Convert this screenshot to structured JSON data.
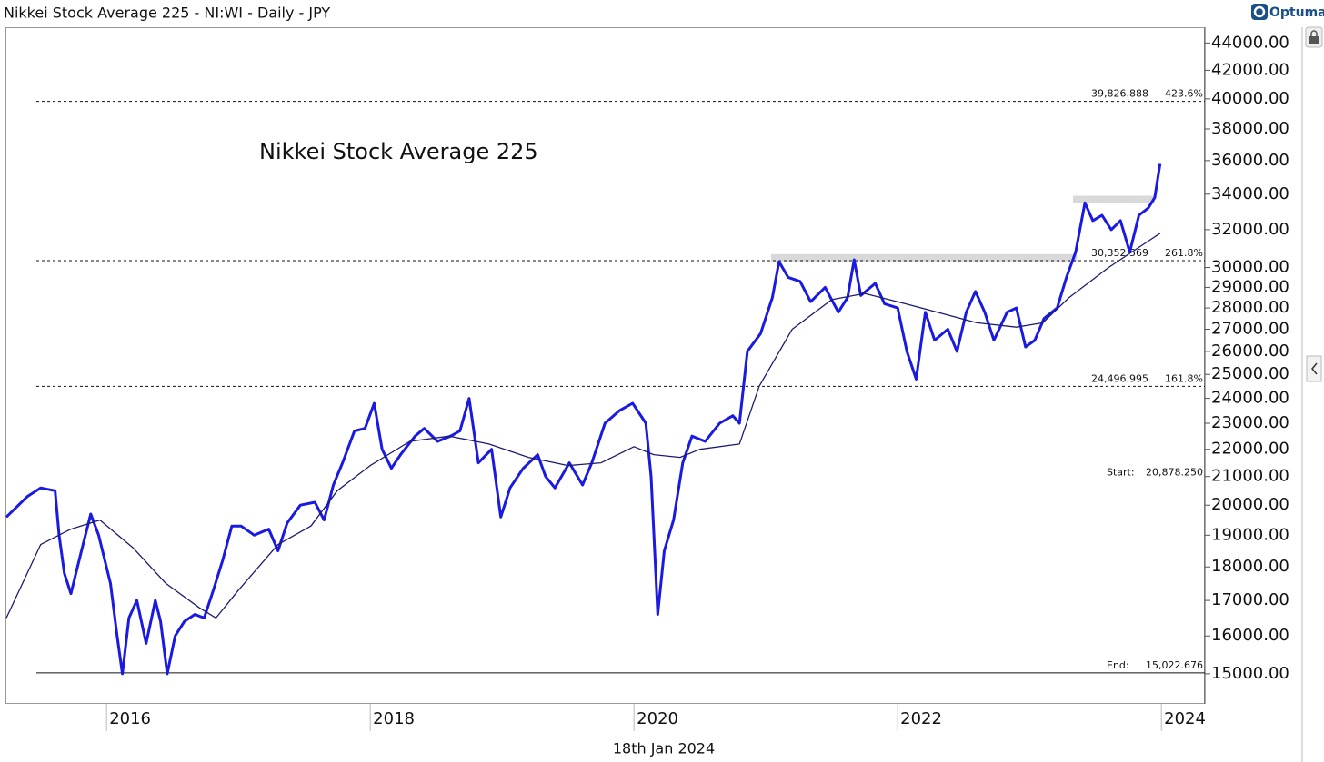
{
  "chart_data": {
    "type": "line",
    "title": "Nikkei Stock Average 225 - NI:WI - Daily - JPY",
    "brand": "Optuma",
    "annotation": "Nikkei Stock Average 225",
    "date_label": "18th Jan 2024",
    "log_scale": true,
    "grid": false,
    "xlim": [
      2015.24,
      2024.33
    ],
    "xticks": [
      2016,
      2018,
      2020,
      2022,
      2024
    ],
    "ylim": [
      14250,
      45200
    ],
    "yticks": [
      {
        "value": 15000,
        "label": "15000.00"
      },
      {
        "value": 16000,
        "label": "16000.00"
      },
      {
        "value": 17000,
        "label": "17000.00"
      },
      {
        "value": 18000,
        "label": "18000.00"
      },
      {
        "value": 19000,
        "label": "19000.00"
      },
      {
        "value": 20000,
        "label": "20000.00"
      },
      {
        "value": 21000,
        "label": "21000.00"
      },
      {
        "value": 22000,
        "label": "22000.00"
      },
      {
        "value": 23000,
        "label": "23000.00"
      },
      {
        "value": 24000,
        "label": "24000.00"
      },
      {
        "value": 25000,
        "label": "25000.00"
      },
      {
        "value": 26000,
        "label": "26000.00"
      },
      {
        "value": 27000,
        "label": "27000.00"
      },
      {
        "value": 28000,
        "label": "28000.00"
      },
      {
        "value": 29000,
        "label": "29000.00"
      },
      {
        "value": 30000,
        "label": "30000.00"
      },
      {
        "value": 32000,
        "label": "32000.00"
      },
      {
        "value": 34000,
        "label": "34000.00"
      },
      {
        "value": 36000,
        "label": "36000.00"
      },
      {
        "value": 38000,
        "label": "38000.00"
      },
      {
        "value": 40000,
        "label": "40000.00"
      },
      {
        "value": 42000,
        "label": "42000.00"
      },
      {
        "value": 44000,
        "label": "44000.00"
      }
    ],
    "series": [
      {
        "color": "#1a1ae0",
        "width": 3,
        "x": [
          2015.24,
          2015.4,
          2015.5,
          2015.61,
          2015.64,
          2015.68,
          2015.73,
          2015.81,
          2015.88,
          2015.94,
          2016.03,
          2016.08,
          2016.12,
          2016.17,
          2016.23,
          2016.3,
          2016.37,
          2016.41,
          2016.46,
          2016.52,
          2016.59,
          2016.67,
          2016.74,
          2016.81,
          2016.88,
          2016.95,
          2017.02,
          2017.12,
          2017.23,
          2017.3,
          2017.37,
          2017.47,
          2017.58,
          2017.65,
          2017.72,
          2017.79,
          2017.88,
          2017.96,
          2018.03,
          2018.09,
          2018.16,
          2018.23,
          2018.34,
          2018.41,
          2018.51,
          2018.61,
          2018.68,
          2018.75,
          2018.82,
          2018.92,
          2018.99,
          2019.06,
          2019.16,
          2019.27,
          2019.33,
          2019.4,
          2019.51,
          2019.61,
          2019.68,
          2019.78,
          2019.89,
          2019.99,
          2020.09,
          2020.13,
          2020.18,
          2020.23,
          2020.3,
          2020.37,
          2020.44,
          2020.54,
          2020.65,
          2020.75,
          2020.8,
          2020.86,
          2020.96,
          2021.05,
          2021.1,
          2021.17,
          2021.26,
          2021.34,
          2021.45,
          2021.55,
          2021.62,
          2021.67,
          2021.72,
          2021.83,
          2021.9,
          2022.0,
          2022.07,
          2022.14,
          2022.21,
          2022.28,
          2022.38,
          2022.45,
          2022.52,
          2022.59,
          2022.66,
          2022.73,
          2022.83,
          2022.9,
          2022.97,
          2023.04,
          2023.11,
          2023.21,
          2023.28,
          2023.35,
          2023.42,
          2023.48,
          2023.55,
          2023.62,
          2023.69,
          2023.76,
          2023.83,
          2023.9,
          2023.95,
          2023.99
        ],
        "values": [
          19600,
          20300,
          20600,
          20500,
          19000,
          17800,
          17200,
          18500,
          19700,
          19000,
          17500,
          16000,
          15000,
          16500,
          17000,
          15800,
          17000,
          16400,
          15000,
          16000,
          16400,
          16600,
          16500,
          17300,
          18200,
          19300,
          19300,
          19000,
          19200,
          18500,
          19400,
          20000,
          20100,
          19500,
          20700,
          21500,
          22700,
          22800,
          23800,
          22000,
          21300,
          21800,
          22500,
          22800,
          22300,
          22500,
          22700,
          24000,
          21500,
          22000,
          19600,
          20600,
          21300,
          21800,
          21000,
          20600,
          21500,
          20700,
          21500,
          23000,
          23500,
          23800,
          23000,
          21000,
          16600,
          18500,
          19500,
          21500,
          22500,
          22300,
          23000,
          23300,
          23000,
          26000,
          26800,
          28500,
          30300,
          29500,
          29300,
          28300,
          29000,
          27800,
          28500,
          30400,
          28600,
          29200,
          28200,
          28000,
          26000,
          24800,
          27800,
          26500,
          27000,
          26000,
          27800,
          28800,
          27800,
          26500,
          27800,
          28000,
          26200,
          26500,
          27500,
          28000,
          29500,
          30800,
          33500,
          32500,
          32800,
          32000,
          32500,
          30800,
          32800,
          33200,
          33800,
          35800
        ]
      },
      {
        "color": "#1c1c6e",
        "width": 1.3,
        "x": [
          2015.24,
          2015.5,
          2015.73,
          2015.95,
          2016.2,
          2016.45,
          2016.7,
          2016.83,
          2017.0,
          2017.3,
          2017.55,
          2017.75,
          2018.0,
          2018.3,
          2018.6,
          2018.9,
          2019.2,
          2019.5,
          2019.75,
          2020.0,
          2020.15,
          2020.35,
          2020.5,
          2020.8,
          2020.95,
          2021.2,
          2021.5,
          2021.75,
          2022.0,
          2022.3,
          2022.6,
          2022.9,
          2023.1,
          2023.3,
          2023.6,
          2023.99
        ],
        "values": [
          16500,
          18700,
          19200,
          19500,
          18600,
          17500,
          16800,
          16500,
          17300,
          18700,
          19300,
          20500,
          21400,
          22300,
          22500,
          22200,
          21700,
          21400,
          21500,
          22100,
          21800,
          21700,
          22000,
          22200,
          24500,
          27000,
          28400,
          28700,
          28300,
          27800,
          27300,
          27100,
          27300,
          28500,
          30000,
          31800
        ]
      }
    ],
    "levels": [
      {
        "value": 39826.888,
        "label": "39,826.888",
        "ratio": "423.6%",
        "style": "dashed"
      },
      {
        "value": 30352.569,
        "label": "30,352.569",
        "ratio": "261.8%",
        "style": "dashed"
      },
      {
        "value": 24496.995,
        "label": "24,496.995",
        "ratio": "161.8%",
        "style": "dashed"
      },
      {
        "value": 20878.25,
        "label": "20,878.250",
        "name": "Start:",
        "style": "solid"
      },
      {
        "value": 15022.676,
        "label": "15,022.676",
        "name": "End:",
        "style": "solid"
      }
    ],
    "bands": [
      {
        "value": 30500,
        "x": [
          2021.04,
          2023.36
        ],
        "color": "#d9d9d9"
      },
      {
        "value": 33700,
        "x": [
          2023.33,
          2023.95
        ],
        "color": "#d9d9d9"
      }
    ]
  }
}
